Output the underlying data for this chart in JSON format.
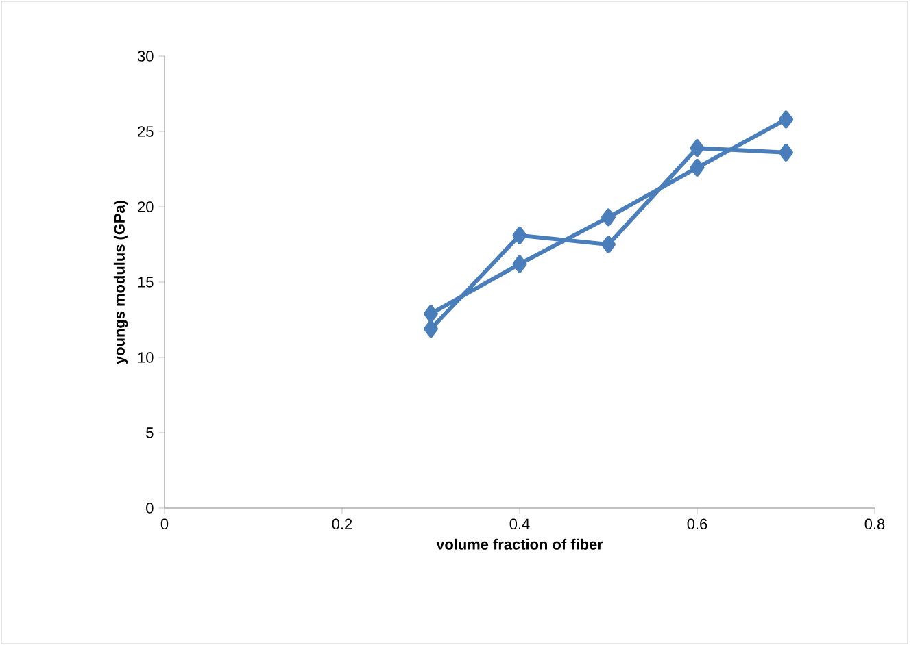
{
  "chart_data": {
    "type": "line",
    "xlabel": "volume fraction of fiber",
    "ylabel": "youngs modulus (GPa)",
    "x": [
      0.3,
      0.4,
      0.5,
      0.6,
      0.7
    ],
    "series": [
      {
        "color": "#4a7ebb",
        "values": [
          11.9,
          18.1,
          17.5,
          23.9,
          23.6
        ]
      },
      {
        "color": "#4a7ebb",
        "values": [
          12.9,
          16.2,
          19.3,
          22.6,
          25.8
        ]
      }
    ],
    "xlim": [
      0,
      0.8
    ],
    "xticks": [
      0,
      0.2,
      0.4,
      0.6,
      0.8
    ],
    "ylim": [
      0,
      30
    ],
    "yticks": [
      0,
      5,
      10,
      15,
      20,
      25,
      30
    ],
    "grid": false,
    "marker": "diamond",
    "line_style": "solid"
  }
}
